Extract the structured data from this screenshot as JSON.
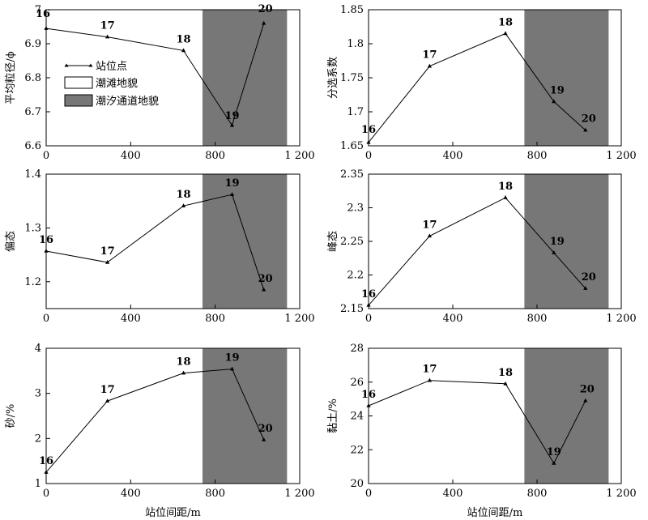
{
  "legend": {
    "items": [
      {
        "label": "站位点",
        "kind": "line-marker"
      },
      {
        "label": "潮滩地貌",
        "kind": "white-box"
      },
      {
        "label": "潮汐通道地貌",
        "kind": "gray-box"
      }
    ]
  },
  "colors": {
    "channel_shade": "#777777",
    "line": "#000000",
    "frame": "#000000"
  },
  "chart_data": [
    {
      "type": "line",
      "ylabel": "平均粒径/ϕ",
      "xlabel": "",
      "xlim": [
        0,
        1200
      ],
      "ylim": [
        6.6,
        7.0
      ],
      "xticks": [
        "0",
        "400",
        "800",
        "1 200"
      ],
      "yticks": [
        6.6,
        6.7,
        6.8,
        6.9,
        7.0
      ],
      "ytick_labels": [
        "6.6",
        "6.7",
        "6.8",
        "6.9",
        "7"
      ],
      "shade_x": [
        740,
        1140
      ],
      "x": [
        0,
        290,
        650,
        880,
        1030
      ],
      "y": [
        6.945,
        6.92,
        6.88,
        6.66,
        6.96
      ],
      "point_labels": [
        "16",
        "17",
        "18",
        "19",
        "20"
      ],
      "label_offsets": [
        [
          -4,
          -14
        ],
        [
          0,
          -10
        ],
        [
          0,
          -10
        ],
        [
          0,
          -8
        ],
        [
          2,
          -14
        ]
      ]
    },
    {
      "type": "line",
      "ylabel": "分选系数",
      "xlabel": "",
      "xlim": [
        0,
        1200
      ],
      "ylim": [
        1.65,
        1.85
      ],
      "xticks": [
        "0",
        "400",
        "800",
        "1 200"
      ],
      "yticks": [
        1.65,
        1.7,
        1.75,
        1.8,
        1.85
      ],
      "ytick_labels": [
        "1.65",
        "1.7",
        "1.75",
        "1.8",
        "1.85"
      ],
      "shade_x": [
        740,
        1140
      ],
      "x": [
        0,
        290,
        650,
        880,
        1030
      ],
      "y": [
        1.655,
        1.767,
        1.815,
        1.715,
        1.673
      ],
      "point_labels": [
        "16",
        "17",
        "18",
        "19",
        "20"
      ],
      "label_offsets": [
        [
          0,
          -12
        ],
        [
          0,
          -10
        ],
        [
          0,
          -10
        ],
        [
          4,
          -10
        ],
        [
          4,
          -10
        ]
      ]
    },
    {
      "type": "line",
      "ylabel": "偏态",
      "xlabel": "",
      "xlim": [
        0,
        1200
      ],
      "ylim": [
        1.15,
        1.4
      ],
      "xticks": [
        "0",
        "400",
        "800",
        "1 200"
      ],
      "yticks": [
        1.2,
        1.3,
        1.4
      ],
      "ytick_labels": [
        "1.2",
        "1.3",
        "1.4"
      ],
      "shade_x": [
        740,
        1140
      ],
      "x": [
        0,
        290,
        650,
        880,
        1030
      ],
      "y": [
        1.257,
        1.236,
        1.341,
        1.362,
        1.185
      ],
      "point_labels": [
        "16",
        "17",
        "18",
        "19",
        "20"
      ],
      "label_offsets": [
        [
          0,
          -10
        ],
        [
          0,
          -10
        ],
        [
          0,
          -10
        ],
        [
          0,
          -10
        ],
        [
          2,
          -10
        ]
      ]
    },
    {
      "type": "line",
      "ylabel": "峰态",
      "xlabel": "",
      "xlim": [
        0,
        1200
      ],
      "ylim": [
        2.15,
        2.35
      ],
      "xticks": [
        "0",
        "400",
        "800",
        "1 200"
      ],
      "yticks": [
        2.15,
        2.2,
        2.25,
        2.3,
        2.35
      ],
      "ytick_labels": [
        "2.15",
        "2.2",
        "2.25",
        "2.3",
        "2.35"
      ],
      "shade_x": [
        740,
        1140
      ],
      "x": [
        0,
        290,
        650,
        880,
        1030
      ],
      "y": [
        2.155,
        2.258,
        2.315,
        2.233,
        2.18
      ],
      "point_labels": [
        "16",
        "17",
        "18",
        "19",
        "20"
      ],
      "label_offsets": [
        [
          0,
          -10
        ],
        [
          0,
          -10
        ],
        [
          0,
          -10
        ],
        [
          4,
          -10
        ],
        [
          4,
          -10
        ]
      ]
    },
    {
      "type": "line",
      "ylabel": "砂/%",
      "xlabel": "站位间距/m",
      "xlim": [
        0,
        1200
      ],
      "ylim": [
        1,
        4
      ],
      "xticks": [
        "0",
        "400",
        "800",
        "1 200"
      ],
      "yticks": [
        1,
        2,
        3,
        4
      ],
      "ytick_labels": [
        "1",
        "2",
        "3",
        "4"
      ],
      "shade_x": [
        740,
        1140
      ],
      "x": [
        0,
        290,
        650,
        880,
        1030
      ],
      "y": [
        1.25,
        2.83,
        3.45,
        3.54,
        1.97
      ],
      "point_labels": [
        "16",
        "17",
        "18",
        "19",
        "20"
      ],
      "label_offsets": [
        [
          0,
          -10
        ],
        [
          0,
          -10
        ],
        [
          0,
          -10
        ],
        [
          0,
          -10
        ],
        [
          2,
          -10
        ]
      ]
    },
    {
      "type": "line",
      "ylabel": "黏土/%",
      "xlabel": "站位间距/m",
      "xlim": [
        0,
        1200
      ],
      "ylim": [
        20,
        28
      ],
      "xticks": [
        "0",
        "400",
        "800",
        "1 200"
      ],
      "yticks": [
        20,
        22,
        24,
        26,
        28
      ],
      "ytick_labels": [
        "20",
        "22",
        "24",
        "26",
        "28"
      ],
      "shade_x": [
        740,
        1140
      ],
      "x": [
        0,
        290,
        650,
        880,
        1030
      ],
      "y": [
        24.6,
        26.1,
        25.9,
        21.2,
        24.9
      ],
      "point_labels": [
        "16",
        "17",
        "18",
        "19",
        "20"
      ],
      "label_offsets": [
        [
          0,
          -10
        ],
        [
          0,
          -10
        ],
        [
          0,
          -10
        ],
        [
          0,
          -10
        ],
        [
          2,
          -10
        ]
      ]
    }
  ]
}
